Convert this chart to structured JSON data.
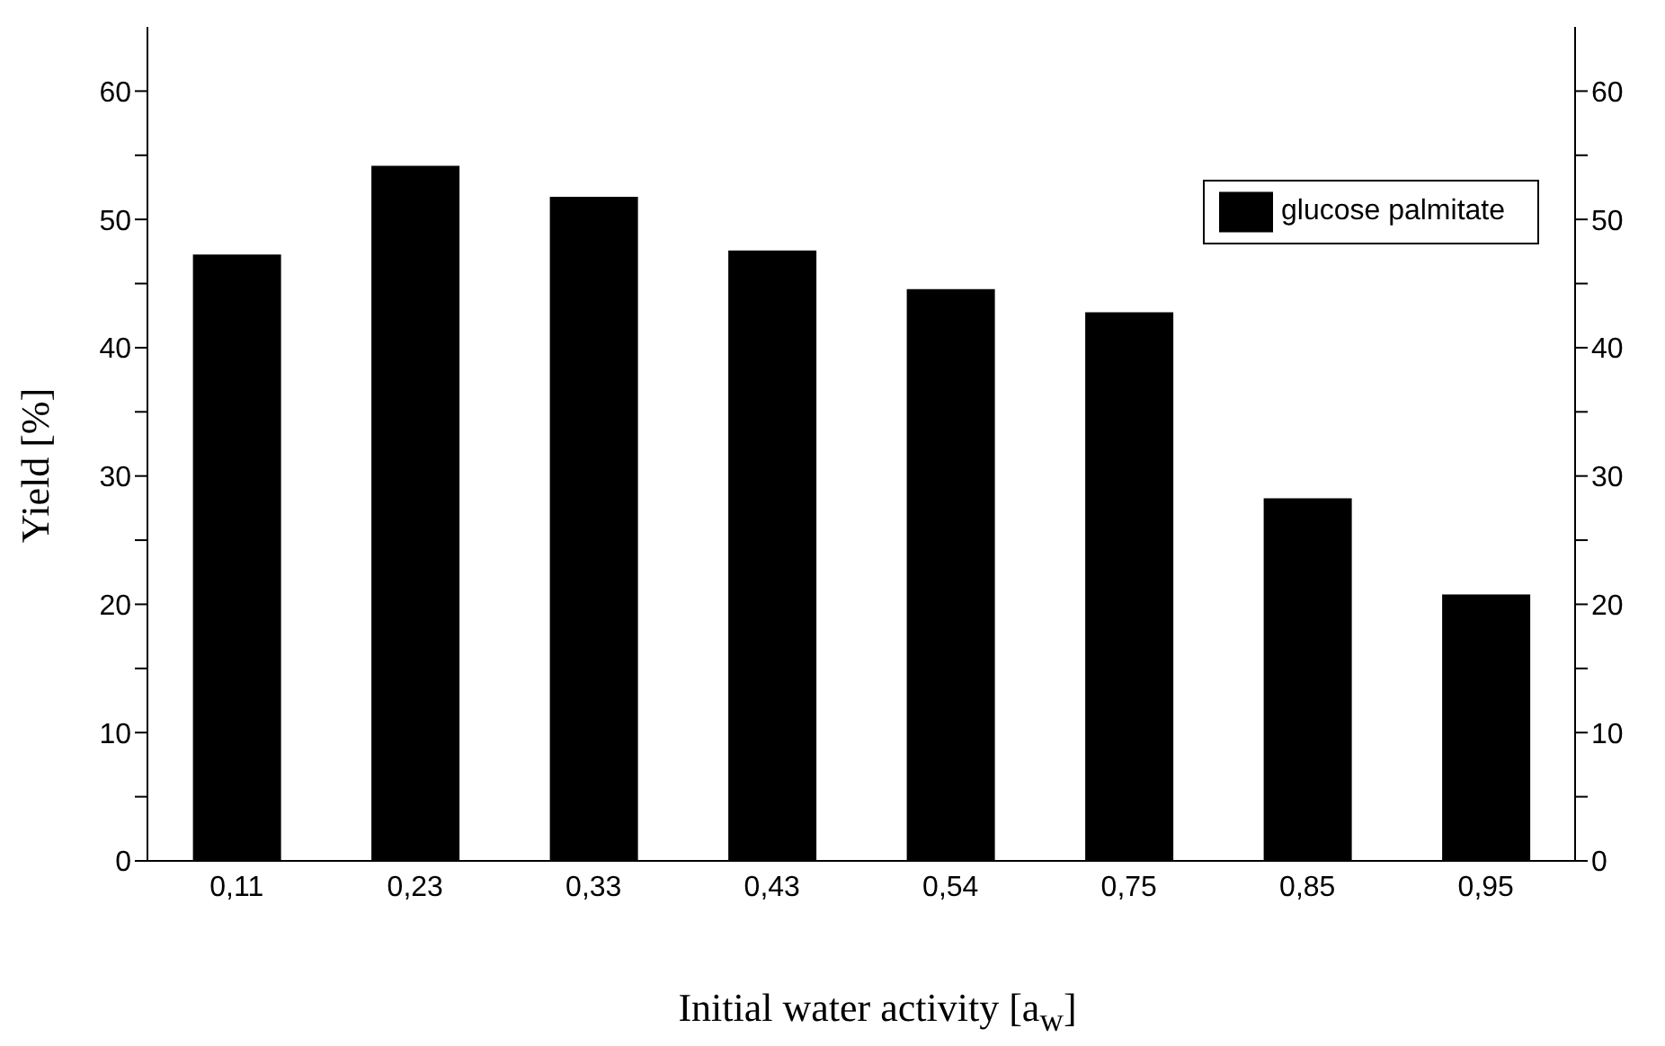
{
  "chart_data": {
    "type": "bar",
    "xlabel": "Initial water activity [a$_{w}$]",
    "ylabel": "Yield [%]",
    "categories": [
      "0,11",
      "0,23",
      "0,33",
      "0,43",
      "0,54",
      "0,75",
      "0,85",
      "0,95"
    ],
    "series": [
      {
        "name": "glucose palmitate",
        "color": "#000000",
        "values": [
          47.2,
          54.1,
          51.7,
          47.5,
          44.5,
          42.7,
          28.2,
          20.7
        ]
      }
    ],
    "ylim": [
      0,
      65
    ],
    "yticks": [
      0,
      {
        "value": 5,
        "label": null
      },
      10,
      {
        "value": 15,
        "label": null
      },
      20,
      {
        "value": 25,
        "label": null
      },
      30,
      {
        "value": 35,
        "label": null
      },
      40,
      {
        "value": 45,
        "label": null
      },
      50,
      {
        "value": 55,
        "label": null
      },
      60
    ],
    "y2lim": [
      0,
      65
    ],
    "y2ticks": [
      0,
      {
        "value": 5,
        "label": null
      },
      10,
      {
        "value": 15,
        "label": null
      },
      20,
      {
        "value": 25,
        "label": null
      },
      30,
      {
        "value": 35,
        "label": null
      },
      40,
      {
        "value": 45,
        "label": null
      },
      50,
      {
        "value": 55,
        "label": null
      },
      60
    ],
    "grid": false,
    "legend": "top right"
  }
}
